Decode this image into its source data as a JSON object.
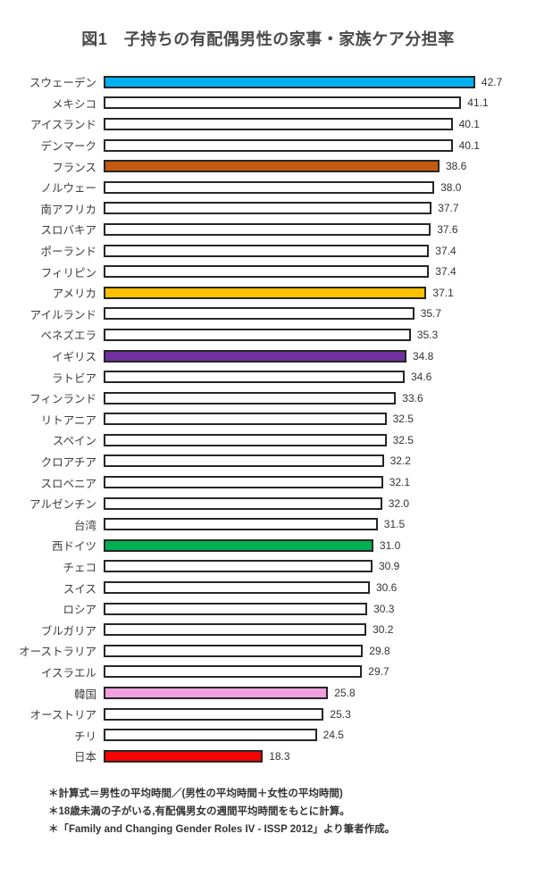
{
  "title": "図1　子持ちの有配偶男性の家事・家族ケア分担率",
  "chart_data": {
    "type": "bar",
    "orientation": "horizontal",
    "title": "図1　子持ちの有配偶男性の家事・家族ケア分担率",
    "xlabel": "",
    "ylabel": "",
    "xlim": [
      0,
      49
    ],
    "grid": false,
    "legend": "none",
    "value_label_decimals": 1,
    "bar_border_color": "#262626",
    "default_bar_fill": "#FFFFFF",
    "categories": [
      "スウェーデン",
      "メキシコ",
      "アイスランド",
      "デンマーク",
      "フランス",
      "ノルウェー",
      "南アフリカ",
      "スロバキア",
      "ポーランド",
      "フィリピン",
      "アメリカ",
      "アイルランド",
      "ベネズエラ",
      "イギリス",
      "ラトビア",
      "フィンランド",
      "リトアニア",
      "スペイン",
      "クロアチア",
      "スロベニア",
      "アルゼンチン",
      "台湾",
      "西ドイツ",
      "チェコ",
      "スイス",
      "ロシア",
      "ブルガリア",
      "オーストラリア",
      "イスラエル",
      "韓国",
      "オーストリア",
      "チリ",
      "日本"
    ],
    "values": [
      42.7,
      41.1,
      40.1,
      40.1,
      38.6,
      38.0,
      37.7,
      37.6,
      37.4,
      37.4,
      37.1,
      35.7,
      35.3,
      34.8,
      34.6,
      33.6,
      32.5,
      32.5,
      32.2,
      32.1,
      32.0,
      31.5,
      31.0,
      30.9,
      30.6,
      30.3,
      30.2,
      29.8,
      29.7,
      25.8,
      25.3,
      24.5,
      18.3
    ],
    "bar_colors": [
      "#00B0F0",
      "#FFFFFF",
      "#FFFFFF",
      "#FFFFFF",
      "#C55A11",
      "#FFFFFF",
      "#FFFFFF",
      "#FFFFFF",
      "#FFFFFF",
      "#FFFFFF",
      "#FFC000",
      "#FFFFFF",
      "#FFFFFF",
      "#7030A0",
      "#FFFFFF",
      "#FFFFFF",
      "#FFFFFF",
      "#FFFFFF",
      "#FFFFFF",
      "#FFFFFF",
      "#FFFFFF",
      "#FFFFFF",
      "#00B050",
      "#FFFFFF",
      "#FFFFFF",
      "#FFFFFF",
      "#FFFFFF",
      "#FFFFFF",
      "#FFFFFF",
      "#F0A0E0",
      "#FFFFFF",
      "#FFFFFF",
      "#FF0000"
    ]
  },
  "footnotes": [
    "＊計算式＝男性の平均時間／(男性の平均時間＋女性の平均時間)",
    "＊18歳未満の子がいる,有配偶男女の週間平均時間をもとに計算。",
    "＊「Family and Changing Gender Roles IV - ISSP 2012」より筆者作成。"
  ]
}
